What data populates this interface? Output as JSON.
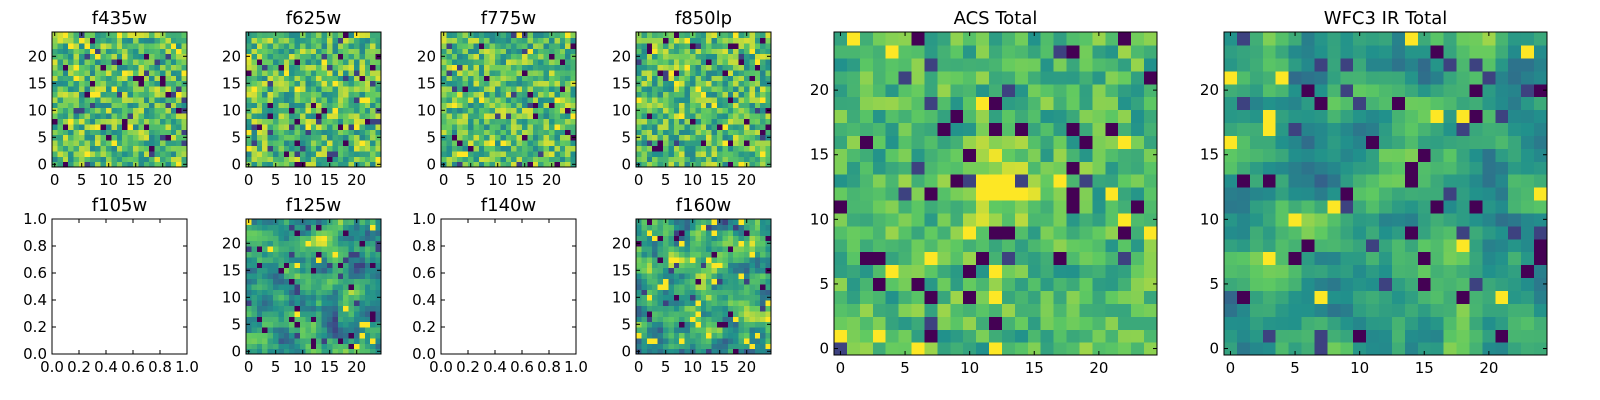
{
  "colormap": {
    "name": "viridis",
    "stops": [
      "#440154",
      "#3b528b",
      "#21918c",
      "#5ec962",
      "#fde725"
    ]
  },
  "chart_data": [
    {
      "type": "heatmap",
      "title": "f435w",
      "grid": [
        25,
        25
      ],
      "xlim": [
        -0.5,
        24.5
      ],
      "ylim": [
        -0.5,
        24.5
      ],
      "xticks": [
        0,
        5,
        10,
        15,
        20
      ],
      "yticks": [
        0,
        5,
        10,
        15,
        20
      ],
      "tick_labels_x": [
        "0",
        "5",
        "10",
        "15",
        "20"
      ],
      "tick_labels_y": [
        "0",
        "5",
        "10",
        "15",
        "20"
      ],
      "empty": false,
      "texture": "noisy",
      "seed": 11
    },
    {
      "type": "heatmap",
      "title": "f625w",
      "grid": [
        25,
        25
      ],
      "xlim": [
        -0.5,
        24.5
      ],
      "ylim": [
        -0.5,
        24.5
      ],
      "xticks": [
        0,
        5,
        10,
        15,
        20
      ],
      "yticks": [
        0,
        5,
        10,
        15,
        20
      ],
      "tick_labels_x": [
        "0",
        "5",
        "10",
        "15",
        "20"
      ],
      "tick_labels_y": [
        "0",
        "5",
        "10",
        "15",
        "20"
      ],
      "empty": false,
      "texture": "noisy",
      "seed": 23
    },
    {
      "type": "heatmap",
      "title": "f775w",
      "grid": [
        25,
        25
      ],
      "xlim": [
        -0.5,
        24.5
      ],
      "ylim": [
        -0.5,
        24.5
      ],
      "xticks": [
        0,
        5,
        10,
        15,
        20
      ],
      "yticks": [
        0,
        5,
        10,
        15,
        20
      ],
      "tick_labels_x": [
        "0",
        "5",
        "10",
        "15",
        "20"
      ],
      "tick_labels_y": [
        "0",
        "5",
        "10",
        "15",
        "20"
      ],
      "empty": false,
      "texture": "noisy",
      "seed": 37
    },
    {
      "type": "heatmap",
      "title": "f850lp",
      "grid": [
        25,
        25
      ],
      "xlim": [
        -0.5,
        24.5
      ],
      "ylim": [
        -0.5,
        24.5
      ],
      "xticks": [
        0,
        5,
        10,
        15,
        20
      ],
      "yticks": [
        0,
        5,
        10,
        15,
        20
      ],
      "tick_labels_x": [
        "0",
        "5",
        "10",
        "15",
        "20"
      ],
      "tick_labels_y": [
        "0",
        "5",
        "10",
        "15",
        "20"
      ],
      "empty": false,
      "texture": "noisy",
      "seed": 41
    },
    {
      "type": "heatmap",
      "title": "f105w",
      "xlim": [
        0,
        1
      ],
      "ylim": [
        0,
        1
      ],
      "xticks": [
        0,
        0.2,
        0.4,
        0.6,
        0.8,
        1.0
      ],
      "yticks": [
        0,
        0.2,
        0.4,
        0.6,
        0.8,
        1.0
      ],
      "tick_labels_x": [
        "0.0",
        "0.2",
        "0.4",
        "0.6",
        "0.8",
        "1.0"
      ],
      "tick_labels_y": [
        "0.0",
        "0.2",
        "0.4",
        "0.6",
        "0.8",
        "1.0"
      ],
      "empty": true
    },
    {
      "type": "heatmap",
      "title": "f125w",
      "grid": [
        25,
        25
      ],
      "xlim": [
        -0.5,
        24.5
      ],
      "ylim": [
        -0.5,
        24.5
      ],
      "xticks": [
        0,
        5,
        10,
        15,
        20
      ],
      "yticks": [
        0,
        5,
        10,
        15,
        20
      ],
      "tick_labels_x": [
        "0",
        "5",
        "10",
        "15",
        "20"
      ],
      "tick_labels_y": [
        "0",
        "5",
        "10",
        "15",
        "20"
      ],
      "empty": false,
      "texture": "smooth",
      "seed": 53
    },
    {
      "type": "heatmap",
      "title": "f140w",
      "xlim": [
        0,
        1
      ],
      "ylim": [
        0,
        1
      ],
      "xticks": [
        0,
        0.2,
        0.4,
        0.6,
        0.8,
        1.0
      ],
      "yticks": [
        0,
        0.2,
        0.4,
        0.6,
        0.8,
        1.0
      ],
      "tick_labels_x": [
        "0.0",
        "0.2",
        "0.4",
        "0.6",
        "0.8",
        "1.0"
      ],
      "tick_labels_y": [
        "0.0",
        "0.2",
        "0.4",
        "0.6",
        "0.8",
        "1.0"
      ],
      "empty": true
    },
    {
      "type": "heatmap",
      "title": "f160w",
      "grid": [
        25,
        25
      ],
      "xlim": [
        -0.5,
        24.5
      ],
      "ylim": [
        -0.5,
        24.5
      ],
      "xticks": [
        0,
        5,
        10,
        15,
        20
      ],
      "yticks": [
        0,
        5,
        10,
        15,
        20
      ],
      "tick_labels_x": [
        "0",
        "5",
        "10",
        "15",
        "20"
      ],
      "tick_labels_y": [
        "0",
        "5",
        "10",
        "15",
        "20"
      ],
      "empty": false,
      "texture": "smooth",
      "seed": 67
    },
    {
      "type": "heatmap",
      "title": "ACS Total",
      "grid": [
        25,
        25
      ],
      "xlim": [
        -0.5,
        24.5
      ],
      "ylim": [
        -0.5,
        24.5
      ],
      "xticks": [
        0,
        5,
        10,
        15,
        20
      ],
      "yticks": [
        0,
        5,
        10,
        15,
        20
      ],
      "tick_labels_x": [
        "0",
        "5",
        "10",
        "15",
        "20"
      ],
      "tick_labels_y": [
        "0",
        "5",
        "10",
        "15",
        "20"
      ],
      "empty": false,
      "texture": "centered",
      "seed": 79
    },
    {
      "type": "heatmap",
      "title": "WFC3 IR Total",
      "grid": [
        25,
        25
      ],
      "xlim": [
        -0.5,
        24.5
      ],
      "ylim": [
        -0.5,
        24.5
      ],
      "xticks": [
        0,
        5,
        10,
        15,
        20
      ],
      "yticks": [
        0,
        5,
        10,
        15,
        20
      ],
      "tick_labels_x": [
        "0",
        "5",
        "10",
        "15",
        "20"
      ],
      "tick_labels_y": [
        "0",
        "5",
        "10",
        "15",
        "20"
      ],
      "empty": false,
      "texture": "centered-smooth",
      "seed": 97
    }
  ]
}
